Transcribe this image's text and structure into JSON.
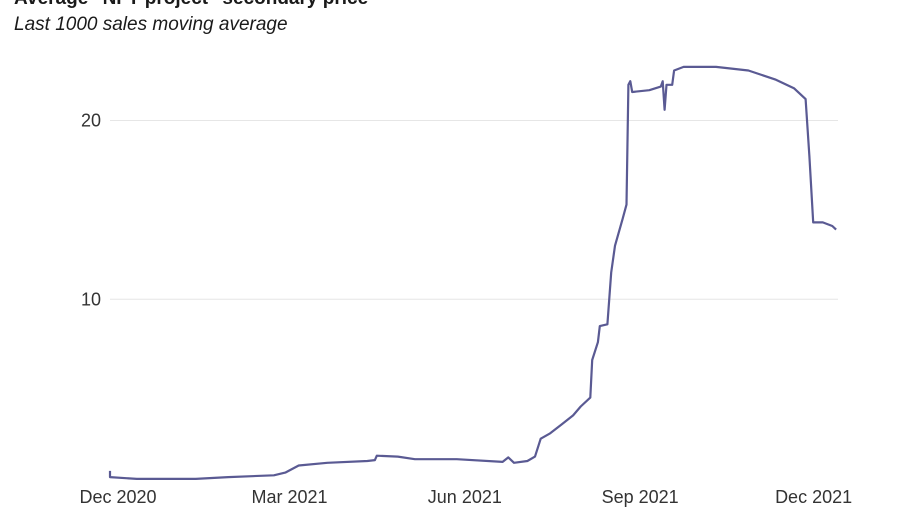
{
  "chart_data": {
    "type": "line",
    "title": "Average \"NFT project\" secondary price",
    "subtitle": "Last 1000 sales moving average",
    "xlabel": "",
    "ylabel": "",
    "x_ticks": [
      "Dec 2020",
      "Mar 2021",
      "Jun 2021",
      "Sep 2021",
      "Dec 2021"
    ],
    "y_ticks": [
      10,
      20
    ],
    "xlim": [
      "2020-12-01",
      "2021-12-18"
    ],
    "ylim": [
      0,
      23.5
    ],
    "grid": true,
    "line_color": "#5a5a93",
    "series": [
      {
        "name": "",
        "points": [
          [
            "2020-12-01",
            0.4
          ],
          [
            "2020-12-01",
            0.05
          ],
          [
            "2020-12-15",
            -0.05
          ],
          [
            "2021-01-15",
            -0.05
          ],
          [
            "2021-02-01",
            0.05
          ],
          [
            "2021-02-25",
            0.15
          ],
          [
            "2021-03-03",
            0.3
          ],
          [
            "2021-03-10",
            0.7
          ],
          [
            "2021-03-25",
            0.85
          ],
          [
            "2021-04-15",
            0.95
          ],
          [
            "2021-04-19",
            1.0
          ],
          [
            "2021-04-20",
            1.25
          ],
          [
            "2021-05-01",
            1.2
          ],
          [
            "2021-05-10",
            1.05
          ],
          [
            "2021-06-01",
            1.05
          ],
          [
            "2021-06-25",
            0.9
          ],
          [
            "2021-06-28",
            1.15
          ],
          [
            "2021-07-01",
            0.85
          ],
          [
            "2021-07-08",
            0.95
          ],
          [
            "2021-07-12",
            1.2
          ],
          [
            "2021-07-15",
            2.2
          ],
          [
            "2021-07-20",
            2.5
          ],
          [
            "2021-07-26",
            3.0
          ],
          [
            "2021-08-01",
            3.5
          ],
          [
            "2021-08-05",
            4.0
          ],
          [
            "2021-08-10",
            4.5
          ],
          [
            "2021-08-11",
            6.6
          ],
          [
            "2021-08-14",
            7.6
          ],
          [
            "2021-08-15",
            8.5
          ],
          [
            "2021-08-19",
            8.6
          ],
          [
            "2021-08-21",
            11.5
          ],
          [
            "2021-08-23",
            13.0
          ],
          [
            "2021-08-27",
            14.5
          ],
          [
            "2021-08-29",
            15.3
          ],
          [
            "2021-08-30",
            22.0
          ],
          [
            "2021-08-31",
            22.2
          ],
          [
            "2021-09-01",
            21.6
          ],
          [
            "2021-09-10",
            21.7
          ],
          [
            "2021-09-16",
            21.9
          ],
          [
            "2021-09-17",
            22.2
          ],
          [
            "2021-09-18",
            20.6
          ],
          [
            "2021-09-19",
            22.0
          ],
          [
            "2021-09-22",
            22.0
          ],
          [
            "2021-09-23",
            22.8
          ],
          [
            "2021-09-28",
            23.0
          ],
          [
            "2021-10-15",
            23.0
          ],
          [
            "2021-11-01",
            22.8
          ],
          [
            "2021-11-15",
            22.3
          ],
          [
            "2021-11-25",
            21.8
          ],
          [
            "2021-12-01",
            21.2
          ],
          [
            "2021-12-03",
            18.0
          ],
          [
            "2021-12-05",
            14.3
          ],
          [
            "2021-12-10",
            14.3
          ],
          [
            "2021-12-15",
            14.1
          ],
          [
            "2021-12-17",
            13.9
          ]
        ]
      }
    ]
  }
}
